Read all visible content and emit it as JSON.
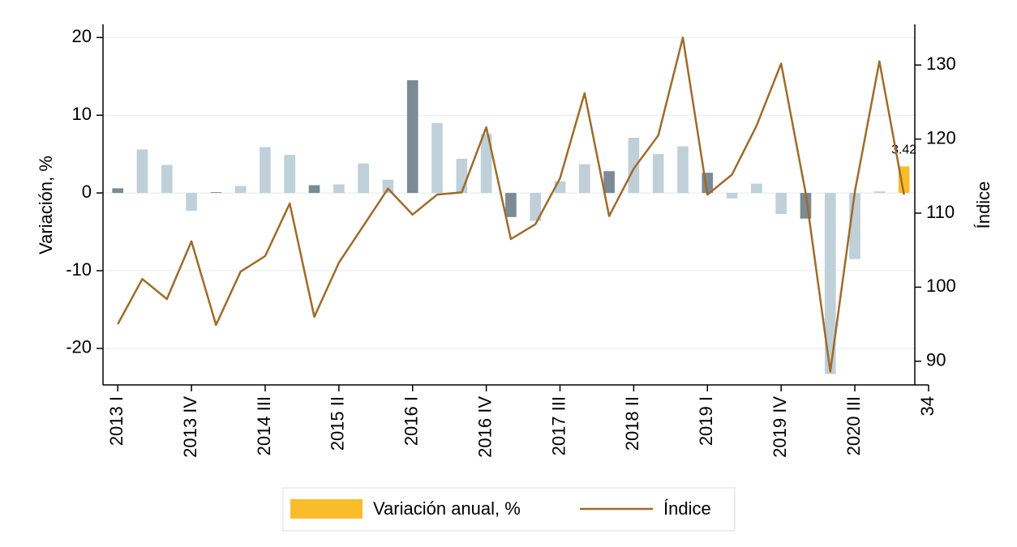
{
  "chart_data": {
    "type": "bar_line",
    "x": [
      1,
      2,
      3,
      4,
      5,
      6,
      7,
      8,
      9,
      10,
      11,
      12,
      13,
      14,
      15,
      16,
      17,
      18,
      19,
      20,
      21,
      22,
      23,
      24,
      25,
      26,
      27,
      28,
      29,
      30,
      31,
      32,
      33
    ],
    "xlim": [
      0.4,
      34.2
    ],
    "xticks": [
      {
        "value": 1,
        "label": "2013 I"
      },
      {
        "value": 4,
        "label": "2013 IV"
      },
      {
        "value": 7,
        "label": "2014 III"
      },
      {
        "value": 10,
        "label": "2015 II"
      },
      {
        "value": 13,
        "label": "2016 I"
      },
      {
        "value": 16,
        "label": "2016 IV"
      },
      {
        "value": 19,
        "label": "2017 III"
      },
      {
        "value": 22,
        "label": "2018 II"
      },
      {
        "value": 25,
        "label": "2019 I"
      },
      {
        "value": 28,
        "label": "2019 IV"
      },
      {
        "value": 31,
        "label": "2020 III"
      },
      34
    ],
    "ylim": [
      -24.7,
      21.7
    ],
    "yticks": [
      -20,
      -10,
      0,
      10,
      20
    ],
    "y2lim": [
      86.8,
      135.5
    ],
    "y2ticks": [
      90,
      100,
      110,
      120,
      130
    ],
    "ylabel": "Variación, %",
    "y2label": "Índice",
    "grid": true,
    "series": [
      {
        "name": "Variación anual, %",
        "color": "#fbbc2c",
        "bar_colors": [
          "#7b8a94",
          "#bfd0d9",
          "#bfd0d9",
          "#bfd0d9",
          "#7b8a94",
          "#bfd0d9",
          "#bfd0d9",
          "#bfd0d9",
          "#7b8a94",
          "#bfd0d9",
          "#bfd0d9",
          "#bfd0d9",
          "#7b8a94",
          "#bfd0d9",
          "#bfd0d9",
          "#bfd0d9",
          "#7b8a94",
          "#bfd0d9",
          "#bfd0d9",
          "#bfd0d9",
          "#7b8a94",
          "#bfd0d9",
          "#bfd0d9",
          "#bfd0d9",
          "#7b8a94",
          "#bfd0d9",
          "#bfd0d9",
          "#bfd0d9",
          "#7b8a94",
          "#bfd0d9",
          "#bfd0d9",
          "#bfd0d9",
          "#fbbc2c"
        ],
        "values": [
          0.6,
          5.6,
          3.6,
          -2.3,
          0.1,
          0.9,
          5.9,
          4.9,
          1.0,
          1.1,
          3.8,
          1.7,
          14.5,
          9.0,
          4.4,
          7.6,
          -3.1,
          -3.6,
          1.5,
          3.7,
          2.8,
          7.1,
          5.0,
          6.0,
          2.6,
          -0.7,
          1.2,
          -2.7,
          -3.3,
          -23.3,
          -8.5,
          0.2,
          3.42
        ],
        "value_labels": [
          null,
          null,
          null,
          null,
          null,
          null,
          null,
          null,
          null,
          null,
          null,
          null,
          null,
          null,
          null,
          null,
          null,
          null,
          null,
          null,
          null,
          null,
          null,
          null,
          null,
          null,
          null,
          null,
          null,
          null,
          null,
          null,
          "3.42"
        ]
      },
      {
        "name": "Índice",
        "color": "#9e6b2b",
        "axis": "y2",
        "values": [
          95.0,
          101.1,
          98.4,
          106.2,
          94.9,
          102.1,
          104.2,
          111.3,
          96.0,
          103.3,
          108.3,
          113.3,
          109.8,
          112.5,
          112.8,
          121.6,
          106.5,
          108.5,
          114.7,
          126.2,
          109.6,
          116.0,
          120.5,
          133.7,
          112.5,
          115.2,
          121.8,
          130.2,
          112.7,
          88.6,
          112.9,
          130.5,
          112.5
        ]
      }
    ]
  }
}
